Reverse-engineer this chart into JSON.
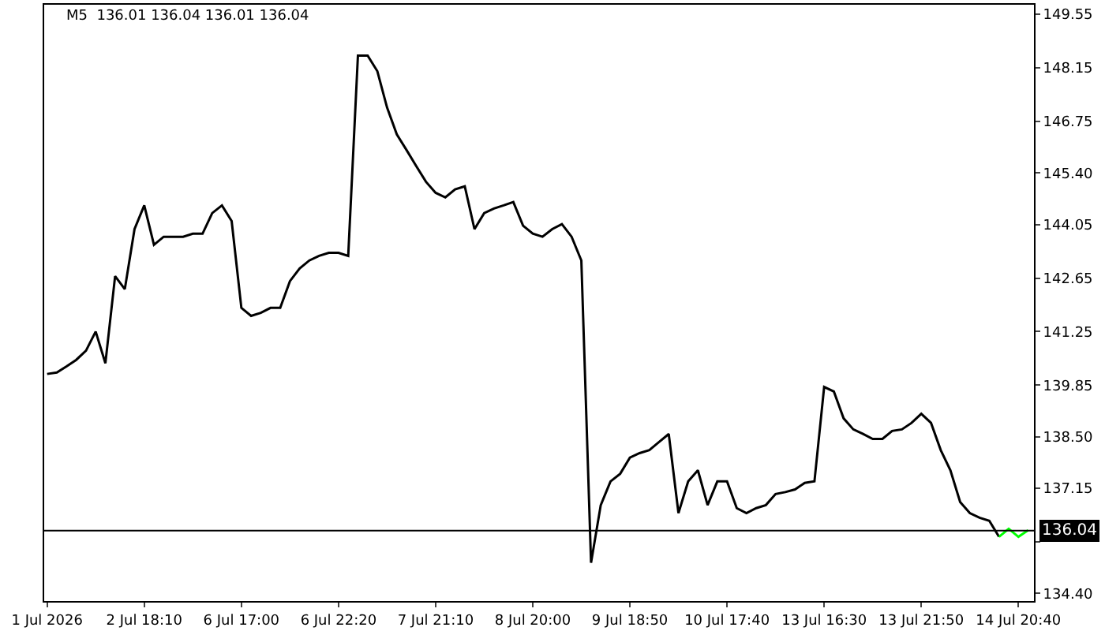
{
  "chart_data": {
    "type": "line",
    "title": "M5  136.01 136.04 136.01 136.04",
    "categories": [
      "1 Jul 2026",
      null,
      null,
      null,
      null,
      null,
      null,
      null,
      null,
      null,
      "2 Jul 18:10",
      null,
      null,
      null,
      null,
      null,
      null,
      null,
      null,
      null,
      "6 Jul 17:00",
      null,
      null,
      null,
      null,
      null,
      null,
      null,
      null,
      null,
      "6 Jul 22:20",
      null,
      null,
      null,
      null,
      null,
      null,
      null,
      null,
      null,
      "7 Jul 21:10",
      null,
      null,
      null,
      null,
      null,
      null,
      null,
      null,
      null,
      "8 Jul 20:00",
      null,
      null,
      null,
      null,
      null,
      null,
      null,
      null,
      null,
      "9 Jul 18:50",
      null,
      null,
      null,
      null,
      null,
      null,
      null,
      null,
      null,
      "10 Jul 17:40",
      null,
      null,
      null,
      null,
      null,
      null,
      null,
      null,
      null,
      "13 Jul 16:30",
      null,
      null,
      null,
      null,
      null,
      null,
      null,
      null,
      null,
      "13 Jul 21:50",
      null,
      null,
      null,
      null,
      null,
      null,
      null,
      null,
      null,
      "14 Jul 20:40",
      null
    ],
    "series": [
      {
        "color": "#000000",
        "values": [
          140.14,
          140.18,
          140.34,
          140.51,
          140.75,
          141.25,
          140.42,
          142.7,
          142.36,
          143.93,
          144.55,
          143.52,
          143.73,
          143.73,
          143.73,
          143.81,
          143.81,
          144.35,
          144.55,
          144.14,
          141.87,
          141.66,
          141.74,
          141.87,
          141.87,
          142.57,
          142.9,
          143.11,
          143.23,
          143.31,
          143.31,
          143.23,
          148.47,
          148.47,
          148.06,
          147.11,
          146.41,
          146.0,
          145.58,
          145.17,
          144.88,
          144.76,
          144.97,
          145.05,
          143.93,
          144.35,
          144.47,
          144.55,
          144.64,
          144.02,
          143.81,
          143.73,
          143.93,
          144.06,
          143.73,
          143.11,
          135.2,
          136.71,
          137.33,
          137.53,
          137.95,
          138.07,
          138.15,
          138.36,
          138.57,
          136.5,
          137.33,
          137.62,
          136.71,
          137.33,
          137.33,
          136.63,
          136.5,
          136.63,
          136.71,
          137.0,
          137.05,
          137.12,
          137.29,
          137.33,
          139.8,
          139.68,
          138.98,
          138.69,
          138.57,
          138.44,
          138.44,
          138.65,
          138.69,
          138.86,
          139.1,
          138.86,
          138.15,
          137.62,
          136.79,
          136.5,
          136.38,
          136.3,
          135.88,
          null,
          null,
          null
        ]
      },
      {
        "color": "#00ff00",
        "values": [
          null,
          null,
          null,
          null,
          null,
          null,
          null,
          null,
          null,
          null,
          null,
          null,
          null,
          null,
          null,
          null,
          null,
          null,
          null,
          null,
          null,
          null,
          null,
          null,
          null,
          null,
          null,
          null,
          null,
          null,
          null,
          null,
          null,
          null,
          null,
          null,
          null,
          null,
          null,
          null,
          null,
          null,
          null,
          null,
          null,
          null,
          null,
          null,
          null,
          null,
          null,
          null,
          null,
          null,
          null,
          null,
          null,
          null,
          null,
          null,
          null,
          null,
          null,
          null,
          null,
          null,
          null,
          null,
          null,
          null,
          null,
          null,
          null,
          null,
          null,
          null,
          null,
          null,
          null,
          null,
          null,
          null,
          null,
          null,
          null,
          null,
          null,
          null,
          null,
          null,
          null,
          null,
          null,
          null,
          null,
          null,
          null,
          null,
          135.88,
          136.09,
          135.88,
          136.05
        ]
      }
    ],
    "ylim": [
      134.2,
      149.8
    ],
    "yticks": [
      {
        "value": 134.4,
        "label": "134.40"
      },
      {
        "value": 135.75,
        "label": null
      },
      137.15,
      {
        "value": 138.5,
        "label": "138.50"
      },
      139.85,
      141.25,
      142.65,
      144.05,
      {
        "value": 145.4,
        "label": "145.40"
      },
      146.75,
      148.15,
      149.55
    ],
    "ref_lines": [
      {
        "axis": "y",
        "value": 136.04,
        "label": "136.04",
        "color": "#000000"
      }
    ],
    "grid": false
  }
}
